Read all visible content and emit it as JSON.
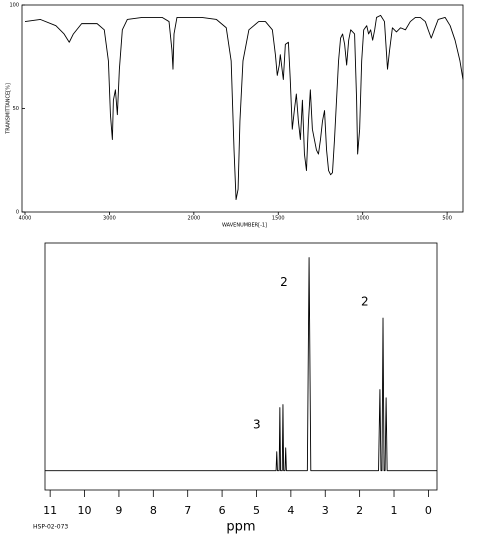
{
  "chart_data": [
    {
      "type": "line",
      "x_label": "WAVENUMBER[-1]",
      "y_label": "TRANSMITTANCE[%]",
      "xlim": [
        4000,
        400
      ],
      "x_scale": "piecewise",
      "xticks": [
        4000,
        3000,
        2000,
        1500,
        1000,
        500
      ],
      "ylim": [
        0,
        100
      ],
      "yticks": [
        0,
        50,
        100
      ],
      "series": [
        {
          "color": "#000000",
          "x": [
            4000,
            3817,
            3634,
            3537,
            3476,
            3427,
            3329,
            3146,
            3061,
            3012,
            2988,
            2965,
            2953,
            2929,
            2906,
            2882,
            2847,
            2788,
            2612,
            2376,
            2294,
            2259,
            2247,
            2235,
            2200,
            1953,
            1866,
            1808,
            1779,
            1762,
            1750,
            1738,
            1727,
            1709,
            1674,
            1616,
            1576,
            1535,
            1517,
            1506,
            1494,
            1488,
            1470,
            1458,
            1440,
            1429,
            1417,
            1405,
            1393,
            1381,
            1369,
            1357,
            1345,
            1333,
            1321,
            1310,
            1298,
            1286,
            1274,
            1262,
            1250,
            1238,
            1226,
            1214,
            1202,
            1190,
            1179,
            1167,
            1155,
            1143,
            1131,
            1119,
            1107,
            1095,
            1083,
            1071,
            1048,
            1036,
            1030,
            1018,
            1006,
            994,
            976,
            965,
            953,
            941,
            929,
            918,
            894,
            871,
            853,
            841,
            824,
            800,
            776,
            747,
            718,
            688,
            659,
            629,
            612,
            594,
            576,
            553,
            512,
            482,
            453,
            424,
            406
          ],
          "values": [
            92,
            93,
            90,
            86,
            82,
            86,
            91,
            91,
            88,
            73,
            47,
            35,
            54,
            59,
            47,
            69,
            88,
            93,
            94,
            94,
            92,
            78,
            69,
            86,
            94,
            94,
            93,
            89,
            73,
            30,
            6,
            11,
            44,
            73,
            88,
            92,
            92,
            88,
            76,
            66,
            71,
            76,
            64,
            81,
            82,
            64,
            40,
            49,
            57,
            44,
            35,
            54,
            28,
            20,
            44,
            59,
            40,
            35,
            30,
            28,
            35,
            44,
            49,
            30,
            20,
            18,
            19,
            35,
            54,
            73,
            84,
            86,
            81,
            71,
            83,
            88,
            86,
            54,
            28,
            40,
            73,
            88,
            90,
            86,
            88,
            83,
            88,
            94,
            95,
            92,
            69,
            78,
            89,
            87,
            89,
            88,
            92,
            94,
            94,
            92,
            88,
            84,
            88,
            93,
            94,
            90,
            83,
            73,
            64
          ]
        }
      ]
    },
    {
      "type": "line",
      "x_label": "ppm",
      "xlim": [
        11.15,
        -0.25
      ],
      "xticks": [
        11,
        10,
        9,
        8,
        7,
        6,
        5,
        4,
        3,
        2,
        1,
        0
      ],
      "ylim": [
        -8.5,
        100
      ],
      "series": [
        {
          "color": "#000000",
          "x": [
            11.15,
            4.5,
            4.43,
            4.41,
            4.39,
            4.34,
            4.32,
            4.3,
            4.25,
            4.23,
            4.21,
            4.17,
            4.15,
            4.13,
            3.52,
            3.47,
            3.42,
            1.45,
            1.41,
            1.38,
            1.35,
            1.32,
            1.29,
            1.26,
            1.23,
            1.2,
            -0.25
          ],
          "values": [
            0,
            0,
            0,
            8.3,
            0,
            0,
            27.7,
            0,
            0,
            29,
            0,
            0,
            10,
            0,
            0,
            93.6,
            0,
            0,
            35.6,
            0,
            0,
            67,
            0,
            0,
            32,
            0,
            0
          ]
        }
      ],
      "annotations": [
        {
          "text": "2",
          "x": 4.2,
          "y": 82.6
        },
        {
          "text": "2",
          "x": 1.85,
          "y": 74
        },
        {
          "text": "3",
          "x": 4.99,
          "y": 20
        }
      ]
    }
  ],
  "footer": "HSP-02-073"
}
